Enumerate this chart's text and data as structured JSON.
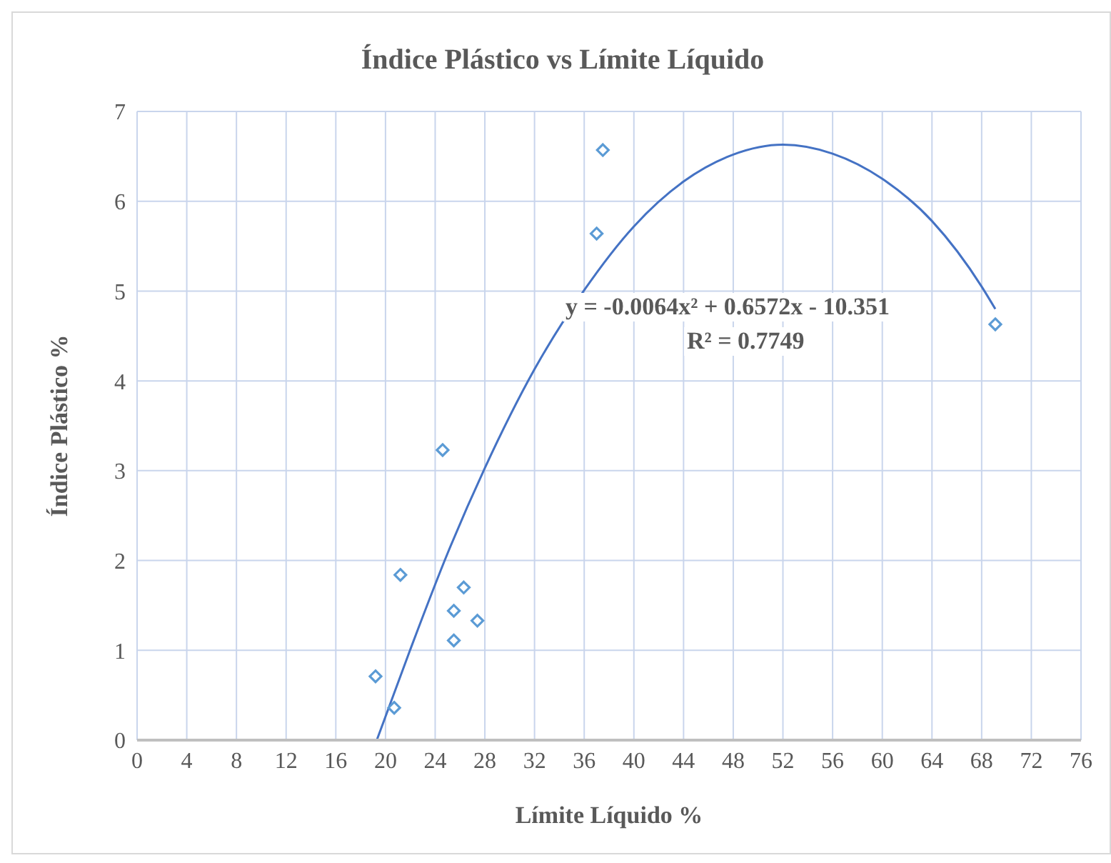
{
  "chart_data": {
    "type": "scatter",
    "title": "Índice  Plástico vs  Límite  Líquido",
    "xlabel": "Límite Líquido %",
    "ylabel": "Índice Plástico %",
    "xlim": [
      0,
      76
    ],
    "xticks": [
      0,
      4,
      8,
      12,
      16,
      20,
      24,
      28,
      32,
      36,
      40,
      44,
      48,
      52,
      56,
      60,
      64,
      68,
      72,
      76
    ],
    "ylim": [
      0,
      7
    ],
    "yticks": [
      0,
      1,
      2,
      3,
      4,
      5,
      6,
      7
    ],
    "grid": true,
    "series": [
      {
        "color": "#5b9bd5",
        "marker": "diamond",
        "x": [
          19.2,
          20.7,
          21.2,
          24.6,
          25.5,
          25.5,
          26.3,
          27.4,
          37.0,
          37.5,
          69.1
        ],
        "values": [
          0.71,
          0.36,
          1.84,
          3.23,
          1.11,
          1.44,
          1.7,
          1.33,
          5.64,
          6.57,
          4.63
        ]
      },
      {
        "type": "line",
        "color": "#4472c4",
        "marker": "none",
        "line_style": "solid",
        "x": [
          19.3,
          22,
          25,
          28,
          32,
          36,
          40,
          44,
          48,
          52,
          56,
          60,
          64,
          68,
          69.1
        ],
        "values": [
          0,
          1.01,
          2.08,
          3.03,
          4.13,
          5.01,
          5.72,
          6.22,
          6.52,
          6.63,
          6.53,
          6.25,
          5.78,
          5.05,
          4.8
        ]
      }
    ],
    "annotations": [
      "y = -0.0064x² + 0.6572x - 10.351",
      "R² = 0.7749"
    ]
  }
}
